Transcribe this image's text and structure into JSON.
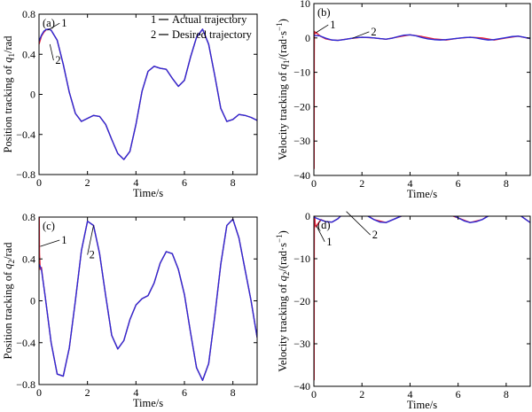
{
  "chart_data": [
    {
      "id": "a",
      "type": "line",
      "panel_label": "(a)",
      "xlabel": "Time/s",
      "ylabel": "Position tracking of q1/rad",
      "ylabel_parts": {
        "pre": "Position tracking of ",
        "var": "q",
        "sub": "1",
        "post": "/rad",
        "sup": ""
      },
      "xlim": [
        0,
        9
      ],
      "ylim": [
        -0.8,
        0.8
      ],
      "xticks": [
        0,
        2,
        4,
        6,
        8
      ],
      "yticks": [
        -0.8,
        -0.4,
        0,
        0.4,
        0.8
      ],
      "ytick_labels": [
        "−0.8",
        "−0.4",
        "0",
        "0.4",
        "0.8"
      ],
      "legend": {
        "placement": "top-right",
        "items": [
          {
            "number": "1",
            "label": "Actual trajectory"
          },
          {
            "number": "2",
            "label": "Desired trajectory"
          }
        ]
      },
      "series": [
        {
          "name": "Actual trajectory",
          "color": "#e8233a",
          "x": [
            0,
            0.05,
            0.1,
            0.2,
            0.3,
            0.4,
            0.5,
            0.75,
            1.0,
            1.25,
            1.5,
            1.75,
            2.0,
            2.25,
            2.5,
            2.75,
            3.0,
            3.25,
            3.5,
            3.75,
            4.0,
            4.25,
            4.5,
            4.75,
            5.0,
            5.25,
            5.5,
            5.75,
            6.0,
            6.25,
            6.5,
            6.75,
            7.0,
            7.25,
            7.5,
            7.75,
            8.0,
            8.25,
            8.5,
            8.75,
            9.0
          ],
          "y": [
            0.5,
            0.54,
            0.58,
            0.62,
            0.645,
            0.65,
            0.64,
            0.54,
            0.3,
            0.02,
            -0.19,
            -0.27,
            -0.24,
            -0.21,
            -0.22,
            -0.3,
            -0.45,
            -0.59,
            -0.65,
            -0.57,
            -0.3,
            0.03,
            0.23,
            0.28,
            0.26,
            0.25,
            0.16,
            0.08,
            0.14,
            0.37,
            0.57,
            0.65,
            0.5,
            0.19,
            -0.14,
            -0.27,
            -0.25,
            -0.2,
            -0.21,
            -0.23,
            -0.26
          ]
        },
        {
          "name": "Desired trajectory",
          "color": "#2b2bd6",
          "x": [
            0,
            0.1,
            0.2,
            0.3,
            0.4,
            0.5,
            0.75,
            1.0,
            1.25,
            1.5,
            1.75,
            2.0,
            2.25,
            2.5,
            2.75,
            3.0,
            3.25,
            3.5,
            3.75,
            4.0,
            4.25,
            4.5,
            4.75,
            5.0,
            5.25,
            5.5,
            5.75,
            6.0,
            6.25,
            6.5,
            6.75,
            7.0,
            7.25,
            7.5,
            7.75,
            8.0,
            8.25,
            8.5,
            8.75,
            9.0
          ],
          "y": [
            0.53,
            0.59,
            0.63,
            0.648,
            0.65,
            0.64,
            0.54,
            0.3,
            0.02,
            -0.19,
            -0.27,
            -0.24,
            -0.21,
            -0.22,
            -0.3,
            -0.45,
            -0.59,
            -0.65,
            -0.57,
            -0.3,
            0.03,
            0.23,
            0.28,
            0.26,
            0.25,
            0.16,
            0.08,
            0.14,
            0.37,
            0.57,
            0.65,
            0.5,
            0.19,
            -0.14,
            -0.27,
            -0.25,
            -0.2,
            -0.21,
            -0.23,
            -0.26
          ]
        }
      ],
      "callouts": [
        {
          "text": "1",
          "point": [
            0.35,
            0.64
          ],
          "label_at": [
            0.85,
            0.71
          ]
        },
        {
          "text": "2",
          "point": [
            0.45,
            0.5
          ],
          "label_at": [
            0.6,
            0.34
          ]
        }
      ]
    },
    {
      "id": "b",
      "type": "line",
      "panel_label": "(b)",
      "xlabel": "Time/s",
      "ylabel": "Velocity tracking of q1/(rad·s−1)",
      "ylabel_parts": {
        "pre": "Velocity tracking of ",
        "var": "q",
        "sub": "1",
        "post": "/(rad·s",
        "sup": "−1",
        "close": ")"
      },
      "xlim": [
        0,
        9
      ],
      "ylim": [
        -40,
        10
      ],
      "xticks": [
        0,
        2,
        4,
        6,
        8
      ],
      "yticks": [
        -40,
        -30,
        -20,
        -10,
        0,
        10
      ],
      "ytick_labels": [
        "−40",
        "−30",
        "−20",
        "−10",
        "0",
        "10"
      ],
      "series": [
        {
          "name": "Actual trajectory",
          "color": "#e8233a",
          "x": [
            0,
            0.005,
            0.01,
            0.015,
            0.02,
            0.03,
            0.04,
            0.06,
            0.1,
            0.15,
            0.2,
            0.3,
            0.5,
            0.75,
            1.0,
            1.5,
            2.0,
            2.5,
            3.0,
            3.5,
            4.0,
            4.5,
            5.0,
            5.5,
            6.0,
            6.5,
            7.0,
            7.5,
            8.0,
            8.5,
            9.0
          ],
          "y": [
            0,
            2,
            -38,
            -6,
            1.5,
            1.2,
            1.8,
            1.3,
            1.6,
            1.2,
            0.9,
            0.4,
            -0.3,
            -0.6,
            -0.7,
            -0.2,
            0.2,
            0.0,
            -0.4,
            0.3,
            0.9,
            0.4,
            -0.3,
            -0.6,
            -0.1,
            0.2,
            0.0,
            -0.6,
            0.0,
            0.5,
            -0.2
          ]
        },
        {
          "name": "Desired trajectory",
          "color": "#2b2bd6",
          "x": [
            0,
            0.25,
            0.5,
            0.75,
            1.0,
            1.25,
            1.5,
            1.75,
            2.0,
            2.25,
            2.5,
            2.75,
            3.0,
            3.25,
            3.5,
            3.75,
            4.0,
            4.25,
            4.5,
            4.75,
            5.0,
            5.25,
            5.5,
            5.75,
            6.0,
            6.25,
            6.5,
            6.75,
            7.0,
            7.25,
            7.5,
            7.75,
            8.0,
            8.25,
            8.5,
            8.75,
            9.0
          ],
          "y": [
            0.7,
            0.6,
            -0.1,
            -0.6,
            -0.7,
            -0.5,
            -0.2,
            0.1,
            0.2,
            0.15,
            0.0,
            -0.2,
            -0.35,
            -0.1,
            0.4,
            0.8,
            0.9,
            0.6,
            0.1,
            -0.3,
            -0.5,
            -0.6,
            -0.5,
            -0.3,
            -0.1,
            0.1,
            0.2,
            0.0,
            -0.35,
            -0.6,
            -0.5,
            -0.2,
            0.1,
            0.4,
            0.5,
            0.2,
            -0.2
          ]
        }
      ],
      "callouts": [
        {
          "text": "1",
          "point": [
            0.08,
            1.5
          ],
          "label_at": [
            0.6,
            3.8
          ]
        },
        {
          "text": "2",
          "point": [
            1.6,
            -0.1
          ],
          "label_at": [
            2.3,
            1.8
          ]
        }
      ]
    },
    {
      "id": "c",
      "type": "line",
      "panel_label": "(c)",
      "xlabel": "Time/s",
      "ylabel": "Position tracking of q2/rad",
      "ylabel_parts": {
        "pre": "Position tracking of ",
        "var": "q",
        "sub": "2",
        "post": "/rad",
        "sup": ""
      },
      "xlim": [
        0,
        9
      ],
      "ylim": [
        -0.8,
        0.8
      ],
      "xticks": [
        0,
        2,
        4,
        6,
        8
      ],
      "yticks": [
        -0.8,
        -0.4,
        0,
        0.4,
        0.8
      ],
      "ytick_labels": [
        "−0.8",
        "−0.4",
        "0",
        "0.4",
        "0.8"
      ],
      "series": [
        {
          "name": "Actual trajectory",
          "color": "#e8233a",
          "x": [
            0,
            0.01,
            0.02,
            0.05,
            0.1,
            0.15,
            0.25,
            0.5,
            0.75,
            1.0,
            1.25,
            1.5,
            1.75,
            2.0,
            2.25,
            2.5,
            2.75,
            3.0,
            3.25,
            3.5,
            3.75,
            4.0,
            4.25,
            4.5,
            4.75,
            5.0,
            5.25,
            5.5,
            5.75,
            6.0,
            6.25,
            6.5,
            6.75,
            7.0,
            7.25,
            7.5,
            7.75,
            8.0,
            8.25,
            8.5,
            8.75,
            9.0
          ],
          "y": [
            0.7,
            0.85,
            0.45,
            0.3,
            0.32,
            0.22,
            0.05,
            -0.4,
            -0.7,
            -0.72,
            -0.45,
            0.0,
            0.48,
            0.76,
            0.72,
            0.45,
            0.05,
            -0.33,
            -0.46,
            -0.38,
            -0.18,
            -0.04,
            0.02,
            0.05,
            0.17,
            0.36,
            0.47,
            0.45,
            0.3,
            0.06,
            -0.3,
            -0.64,
            -0.76,
            -0.6,
            -0.15,
            0.35,
            0.72,
            0.78,
            0.6,
            0.3,
            0.0,
            -0.35
          ]
        },
        {
          "name": "Desired trajectory",
          "color": "#2b2bd6",
          "x": [
            0,
            0.1,
            0.25,
            0.5,
            0.75,
            1.0,
            1.25,
            1.5,
            1.75,
            2.0,
            2.25,
            2.5,
            2.75,
            3.0,
            3.25,
            3.5,
            3.75,
            4.0,
            4.25,
            4.5,
            4.75,
            5.0,
            5.25,
            5.5,
            5.75,
            6.0,
            6.25,
            6.5,
            6.75,
            7.0,
            7.25,
            7.5,
            7.75,
            8.0,
            8.25,
            8.5,
            8.75,
            9.0
          ],
          "y": [
            0.35,
            0.3,
            0.05,
            -0.4,
            -0.7,
            -0.72,
            -0.45,
            0.0,
            0.48,
            0.76,
            0.72,
            0.45,
            0.05,
            -0.33,
            -0.46,
            -0.38,
            -0.18,
            -0.04,
            0.02,
            0.05,
            0.17,
            0.36,
            0.47,
            0.45,
            0.3,
            0.06,
            -0.3,
            -0.64,
            -0.76,
            -0.6,
            -0.15,
            0.35,
            0.72,
            0.78,
            0.6,
            0.3,
            0.0,
            -0.35
          ]
        }
      ],
      "callouts": [
        {
          "text": "1",
          "point": [
            0.05,
            0.52
          ],
          "label_at": [
            0.85,
            0.58
          ]
        },
        {
          "text": "2",
          "point": [
            2.25,
            0.72
          ],
          "label_at": [
            2.0,
            0.44
          ]
        }
      ]
    },
    {
      "id": "d",
      "type": "line",
      "panel_label": "(d)",
      "xlabel": "Time/s",
      "ylabel": "Velocity tracking of q2/(rad·s−1)",
      "ylabel_parts": {
        "pre": "Velocity tracking of ",
        "var": "q",
        "sub": "2",
        "post": "/(rad·s",
        "sup": "−1",
        "close": ")"
      },
      "xlim": [
        0,
        9
      ],
      "ylim": [
        -40,
        0
      ],
      "xticks": [
        0,
        2,
        4,
        6,
        8
      ],
      "yticks": [
        -40,
        -30,
        -20,
        -10,
        0
      ],
      "ytick_labels": [
        "−40",
        "−30",
        "−20",
        "−10",
        "0"
      ],
      "series": [
        {
          "name": "Actual trajectory",
          "color": "#e8233a",
          "x": [
            0,
            0.005,
            0.01,
            0.015,
            0.02,
            0.03,
            0.05,
            0.08,
            0.12,
            0.2,
            0.3,
            0.5,
            0.75,
            1.0,
            1.25,
            1.5,
            2.0,
            2.5,
            3.0,
            3.5,
            4.0,
            4.5,
            5.0,
            5.5,
            6.0,
            6.5,
            7.0,
            7.5,
            8.0,
            8.5,
            9.0
          ],
          "y": [
            2,
            2,
            -38.5,
            -8,
            -1,
            0.5,
            -1.5,
            -2.5,
            -2.2,
            -1.5,
            -0.8,
            -1.3,
            -1.4,
            -0.6,
            0.8,
            1.7,
            1.0,
            -0.8,
            -1.5,
            -0.3,
            0.8,
            0.4,
            0.2,
            0.6,
            -0.4,
            -1.5,
            -0.8,
            1.0,
            2.0,
            0.5,
            -1.5
          ]
        },
        {
          "name": "Desired trajectory",
          "color": "#2b2bd6",
          "x": [
            0,
            0.25,
            0.5,
            0.75,
            1.0,
            1.25,
            1.5,
            1.75,
            2.0,
            2.25,
            2.5,
            2.75,
            3.0,
            3.25,
            3.5,
            3.75,
            4.0,
            4.25,
            4.5,
            4.75,
            5.0,
            5.25,
            5.5,
            5.75,
            6.0,
            6.25,
            6.5,
            6.75,
            7.0,
            7.25,
            7.5,
            7.75,
            8.0,
            8.25,
            8.5,
            8.75,
            9.0
          ],
          "y": [
            -0.2,
            -0.8,
            -1.3,
            -1.4,
            -0.6,
            0.8,
            1.7,
            1.9,
            1.0,
            0.0,
            -0.8,
            -1.4,
            -1.5,
            -0.9,
            -0.3,
            0.3,
            0.8,
            0.7,
            0.4,
            0.2,
            0.2,
            0.4,
            0.6,
            0.3,
            -0.4,
            -1.1,
            -1.5,
            -1.3,
            -0.8,
            0.0,
            1.0,
            1.7,
            2.0,
            1.5,
            0.5,
            -0.5,
            -1.5
          ]
        }
      ],
      "callouts": [
        {
          "text": "1",
          "point": [
            0.1,
            -2.2
          ],
          "label_at": [
            0.45,
            -6.0
          ]
        },
        {
          "text": "2",
          "point": [
            1.35,
            1.1
          ],
          "label_at": [
            2.35,
            -4.4
          ]
        }
      ]
    }
  ]
}
